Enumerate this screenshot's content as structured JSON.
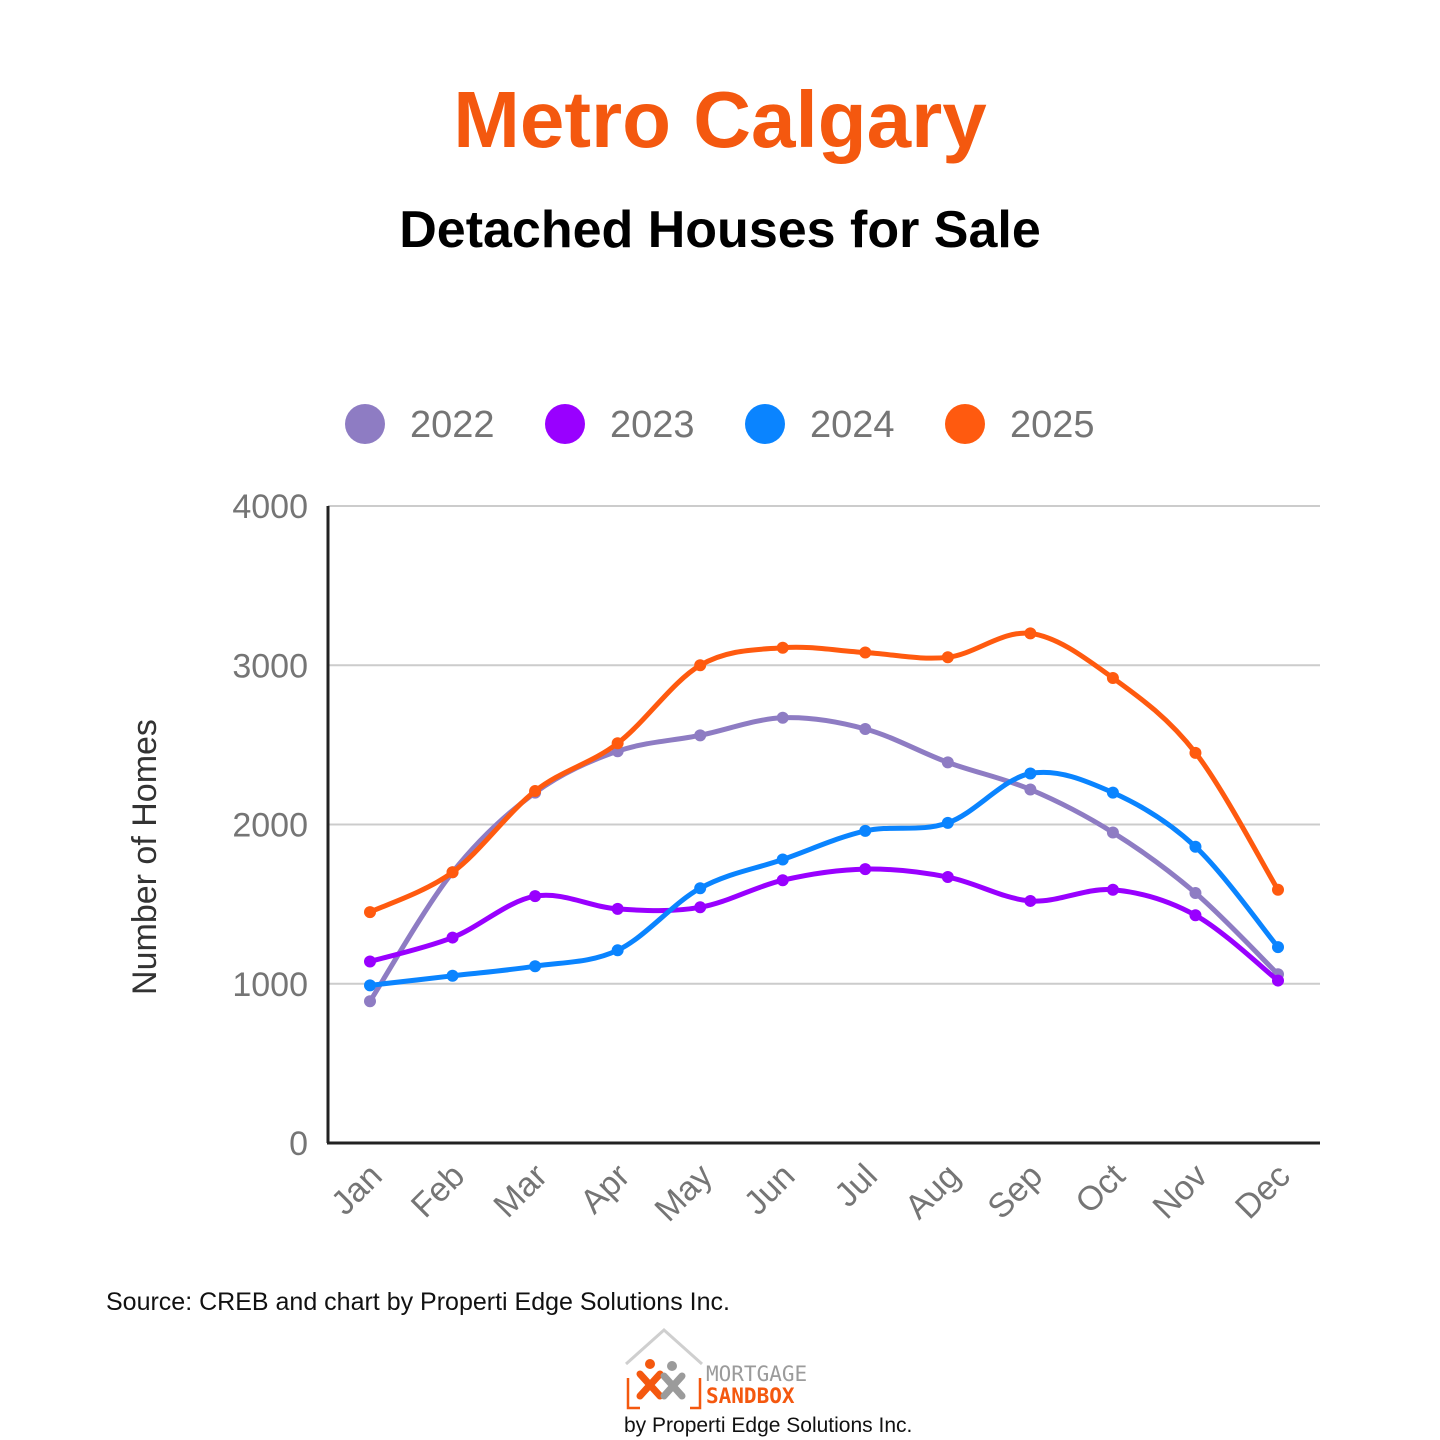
{
  "header": {
    "title": "Metro Calgary",
    "subtitle": "Detached Houses for Sale"
  },
  "footer": {
    "source": "Source: CREB and chart by Properti Edge Solutions Inc.",
    "logo_line1": "MORTGAGE",
    "logo_line2": "SANDBOX",
    "logo_byline": "by Properti Edge Solutions Inc."
  },
  "chart_data": {
    "type": "line",
    "title": "Detached Houses for Sale",
    "xlabel": "",
    "ylabel": "Number of Homes",
    "ylim": [
      0,
      4000
    ],
    "yticks": [
      0,
      1000,
      2000,
      3000,
      4000
    ],
    "grid": true,
    "legend_position": "top",
    "categories": [
      "Jan",
      "Feb",
      "Mar",
      "Apr",
      "May",
      "Jun",
      "Jul",
      "Aug",
      "Sep",
      "Oct",
      "Nov",
      "Dec"
    ],
    "series": [
      {
        "name": "2022",
        "color": "#8E7CC3",
        "values": [
          890,
          1700,
          2200,
          2460,
          2560,
          2670,
          2600,
          2390,
          2220,
          1950,
          1570,
          1060
        ]
      },
      {
        "name": "2023",
        "color": "#9900FF",
        "values": [
          1140,
          1290,
          1550,
          1470,
          1480,
          1650,
          1720,
          1670,
          1520,
          1590,
          1430,
          1020
        ]
      },
      {
        "name": "2024",
        "color": "#0A84FF",
        "values": [
          990,
          1050,
          1110,
          1210,
          1600,
          1780,
          1960,
          2010,
          2320,
          2200,
          1860,
          1230
        ]
      },
      {
        "name": "2025",
        "color": "#FF5A0F",
        "values": [
          1450,
          1700,
          2210,
          2510,
          3000,
          3110,
          3080,
          3050,
          3200,
          2920,
          2450,
          1590
        ]
      }
    ]
  }
}
